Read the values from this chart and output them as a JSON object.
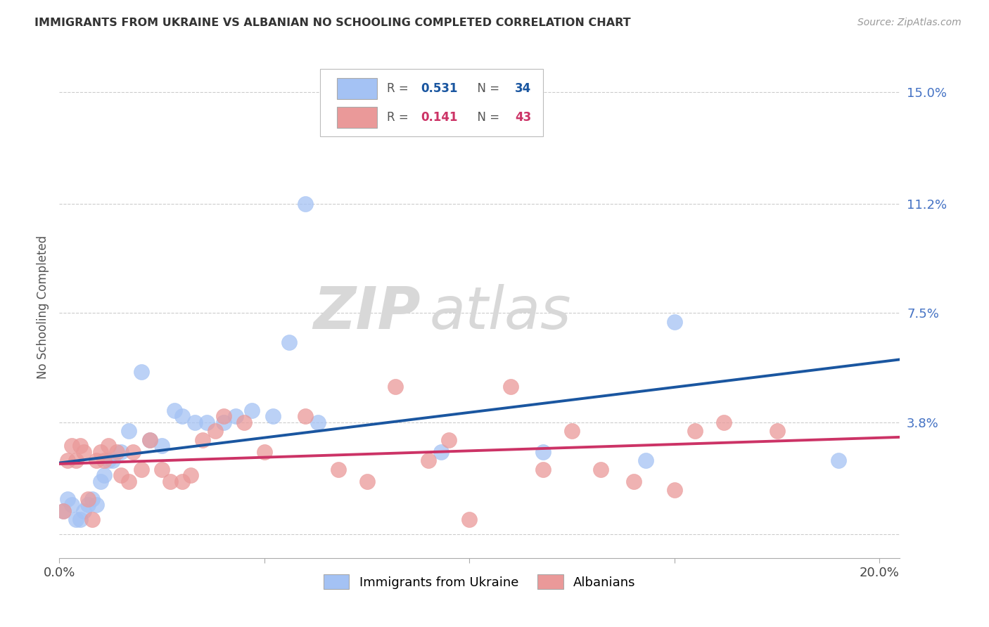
{
  "title": "IMMIGRANTS FROM UKRAINE VS ALBANIAN NO SCHOOLING COMPLETED CORRELATION CHART",
  "source": "Source: ZipAtlas.com",
  "ylabel": "No Schooling Completed",
  "xlim": [
    0.0,
    0.205
  ],
  "ylim": [
    -0.008,
    0.162
  ],
  "xticks": [
    0.0,
    0.05,
    0.1,
    0.15,
    0.2
  ],
  "xticklabels": [
    "0.0%",
    "",
    "",
    "",
    "20.0%"
  ],
  "ytick_positions": [
    0.0,
    0.038,
    0.075,
    0.112,
    0.15
  ],
  "ytick_labels": [
    "",
    "3.8%",
    "7.5%",
    "11.2%",
    "15.0%"
  ],
  "ukraine_color": "#a4c2f4",
  "albanian_color": "#ea9999",
  "ukraine_line_color": "#1a56a0",
  "albanian_line_color": "#cc3366",
  "ukraine_x": [
    0.001,
    0.002,
    0.003,
    0.004,
    0.005,
    0.006,
    0.007,
    0.008,
    0.009,
    0.01,
    0.011,
    0.012,
    0.013,
    0.015,
    0.017,
    0.02,
    0.022,
    0.025,
    0.028,
    0.03,
    0.033,
    0.036,
    0.04,
    0.043,
    0.047,
    0.052,
    0.056,
    0.06,
    0.063,
    0.093,
    0.118,
    0.143,
    0.15,
    0.19
  ],
  "ukraine_y": [
    0.008,
    0.012,
    0.01,
    0.005,
    0.005,
    0.008,
    0.01,
    0.012,
    0.01,
    0.018,
    0.02,
    0.025,
    0.025,
    0.028,
    0.035,
    0.055,
    0.032,
    0.03,
    0.042,
    0.04,
    0.038,
    0.038,
    0.038,
    0.04,
    0.042,
    0.04,
    0.065,
    0.112,
    0.038,
    0.028,
    0.028,
    0.025,
    0.072,
    0.025
  ],
  "albanian_x": [
    0.001,
    0.002,
    0.003,
    0.004,
    0.005,
    0.006,
    0.007,
    0.008,
    0.009,
    0.01,
    0.011,
    0.012,
    0.014,
    0.015,
    0.017,
    0.018,
    0.02,
    0.022,
    0.025,
    0.027,
    0.03,
    0.032,
    0.035,
    0.038,
    0.04,
    0.045,
    0.05,
    0.06,
    0.068,
    0.075,
    0.082,
    0.09,
    0.095,
    0.1,
    0.11,
    0.118,
    0.125,
    0.132,
    0.14,
    0.15,
    0.155,
    0.162,
    0.175
  ],
  "albanian_y": [
    0.008,
    0.025,
    0.03,
    0.025,
    0.03,
    0.028,
    0.012,
    0.005,
    0.025,
    0.028,
    0.025,
    0.03,
    0.028,
    0.02,
    0.018,
    0.028,
    0.022,
    0.032,
    0.022,
    0.018,
    0.018,
    0.02,
    0.032,
    0.035,
    0.04,
    0.038,
    0.028,
    0.04,
    0.022,
    0.018,
    0.05,
    0.025,
    0.032,
    0.005,
    0.05,
    0.022,
    0.035,
    0.022,
    0.018,
    0.015,
    0.035,
    0.038,
    0.035
  ],
  "watermark_line1": "ZIP",
  "watermark_line2": "atlas",
  "background_color": "#ffffff",
  "grid_color": "#cccccc"
}
